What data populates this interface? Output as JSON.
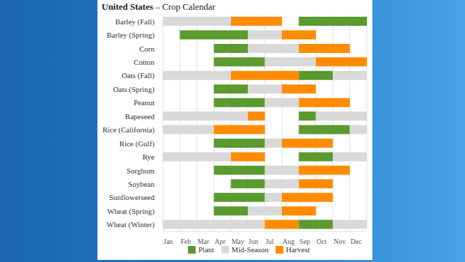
{
  "chart_data": {
    "type": "gantt",
    "title": "United States",
    "subtitle": "– Crop Calendar",
    "orientation": "horizontal",
    "grid": true,
    "legend": "bottom",
    "categories": [
      "Barley (Fall)",
      "Barley (Spring)",
      "Corn",
      "Cotton",
      "Oats (Fall)",
      "Oats (Spring)",
      "Peanut",
      "Rapeseed",
      "Rice (California)",
      "Rice (Gulf)",
      "Rye",
      "Sorghum",
      "Soybean",
      "Sunflowerseed",
      "Wheat (Spring)",
      "Wheat (Winter)"
    ],
    "series": [
      {
        "name": "Plant",
        "color": "#5a9a2e"
      },
      {
        "name": "Mid-Season",
        "color": "#d9d9d9"
      },
      {
        "name": "Harvest",
        "color": "#ff8c00"
      }
    ],
    "segments": [
      [
        {
          "series": "Mid-Season",
          "start": 0,
          "end": 4
        },
        {
          "series": "Harvest",
          "start": 4,
          "end": 7
        },
        {
          "series": "Plant",
          "start": 8,
          "end": 12
        }
      ],
      [
        {
          "series": "Plant",
          "start": 1,
          "end": 5
        },
        {
          "series": "Mid-Season",
          "start": 5,
          "end": 7
        },
        {
          "series": "Harvest",
          "start": 7,
          "end": 9
        }
      ],
      [
        {
          "series": "Plant",
          "start": 3,
          "end": 5
        },
        {
          "series": "Mid-Season",
          "start": 5,
          "end": 8
        },
        {
          "series": "Harvest",
          "start": 8,
          "end": 11
        }
      ],
      [
        {
          "series": "Plant",
          "start": 3,
          "end": 6
        },
        {
          "series": "Mid-Season",
          "start": 6,
          "end": 9
        },
        {
          "series": "Harvest",
          "start": 9,
          "end": 12
        }
      ],
      [
        {
          "series": "Mid-Season",
          "start": 0,
          "end": 4
        },
        {
          "series": "Harvest",
          "start": 4,
          "end": 8
        },
        {
          "series": "Plant",
          "start": 8,
          "end": 10
        },
        {
          "series": "Mid-Season",
          "start": 10,
          "end": 12
        }
      ],
      [
        {
          "series": "Plant",
          "start": 3,
          "end": 5
        },
        {
          "series": "Mid-Season",
          "start": 5,
          "end": 7
        },
        {
          "series": "Harvest",
          "start": 7,
          "end": 9
        }
      ],
      [
        {
          "series": "Plant",
          "start": 3,
          "end": 6
        },
        {
          "series": "Mid-Season",
          "start": 6,
          "end": 8
        },
        {
          "series": "Harvest",
          "start": 8,
          "end": 11
        }
      ],
      [
        {
          "series": "Mid-Season",
          "start": 0,
          "end": 5
        },
        {
          "series": "Harvest",
          "start": 5,
          "end": 6
        },
        {
          "series": "Plant",
          "start": 8,
          "end": 9
        },
        {
          "series": "Mid-Season",
          "start": 9,
          "end": 12
        }
      ],
      [
        {
          "series": "Mid-Season",
          "start": 0,
          "end": 3
        },
        {
          "series": "Harvest",
          "start": 3,
          "end": 6
        },
        {
          "series": "Plant",
          "start": 8,
          "end": 11
        },
        {
          "series": "Mid-Season",
          "start": 11,
          "end": 12
        }
      ],
      [
        {
          "series": "Plant",
          "start": 3,
          "end": 6
        },
        {
          "series": "Mid-Season",
          "start": 6,
          "end": 7
        },
        {
          "series": "Harvest",
          "start": 7,
          "end": 10
        }
      ],
      [
        {
          "series": "Mid-Season",
          "start": 0,
          "end": 4
        },
        {
          "series": "Harvest",
          "start": 4,
          "end": 6
        },
        {
          "series": "Plant",
          "start": 8,
          "end": 10
        },
        {
          "series": "Mid-Season",
          "start": 10,
          "end": 12
        }
      ],
      [
        {
          "series": "Plant",
          "start": 3,
          "end": 6
        },
        {
          "series": "Mid-Season",
          "start": 6,
          "end": 8
        },
        {
          "series": "Harvest",
          "start": 8,
          "end": 11
        }
      ],
      [
        {
          "series": "Plant",
          "start": 4,
          "end": 6
        },
        {
          "series": "Mid-Season",
          "start": 6,
          "end": 8
        },
        {
          "series": "Harvest",
          "start": 8,
          "end": 10
        }
      ],
      [
        {
          "series": "Plant",
          "start": 3,
          "end": 6
        },
        {
          "series": "Mid-Season",
          "start": 6,
          "end": 7
        },
        {
          "series": "Harvest",
          "start": 7,
          "end": 10
        }
      ],
      [
        {
          "series": "Plant",
          "start": 3,
          "end": 5
        },
        {
          "series": "Mid-Season",
          "start": 5,
          "end": 7
        },
        {
          "series": "Harvest",
          "start": 7,
          "end": 9
        }
      ],
      [
        {
          "series": "Mid-Season",
          "start": 0,
          "end": 6
        },
        {
          "series": "Harvest",
          "start": 6,
          "end": 8
        },
        {
          "series": "Plant",
          "start": 8,
          "end": 10
        },
        {
          "series": "Mid-Season",
          "start": 10,
          "end": 12
        }
      ]
    ],
    "xlim": [
      0,
      12
    ],
    "xticks": [
      {
        "value": 0,
        "label": "Jan"
      },
      {
        "value": 1,
        "label": "Feb"
      },
      {
        "value": 2,
        "label": "Mar"
      },
      {
        "value": 3,
        "label": "Apr"
      },
      {
        "value": 4,
        "label": "May"
      },
      {
        "value": 5,
        "label": "Jun"
      },
      {
        "value": 6,
        "label": "Jul"
      },
      {
        "value": 7,
        "label": "Aug"
      },
      {
        "value": 8,
        "label": "Sep"
      },
      {
        "value": 9,
        "label": "Oct"
      },
      {
        "value": 10,
        "label": "Nov"
      },
      {
        "value": 11,
        "label": "Dec"
      }
    ]
  }
}
